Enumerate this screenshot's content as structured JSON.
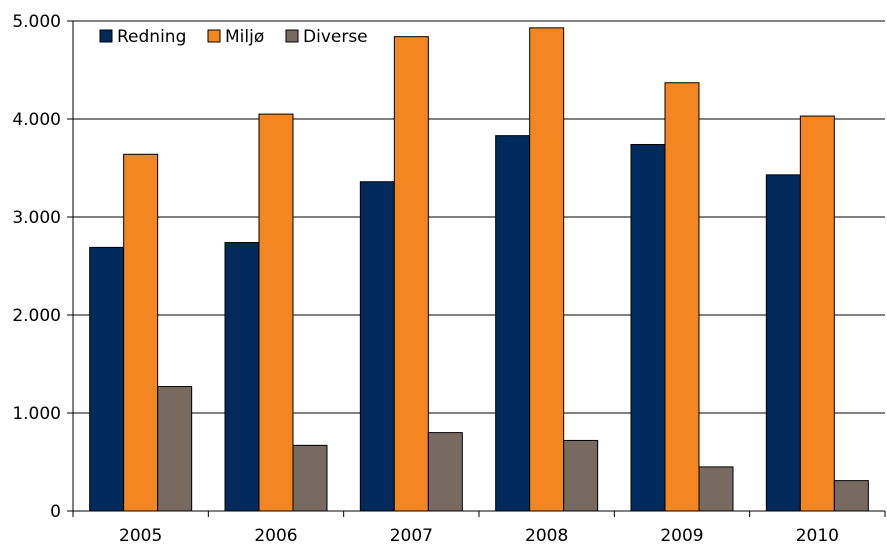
{
  "chart_data": {
    "type": "bar",
    "categories": [
      "2005",
      "2006",
      "2007",
      "2008",
      "2009",
      "2010"
    ],
    "series": [
      {
        "name": "Redning",
        "color": "#002a5c",
        "values": [
          2690,
          2740,
          3360,
          3830,
          3740,
          3430
        ]
      },
      {
        "name": "Miljø",
        "color": "#f48622",
        "values": [
          3640,
          4050,
          4840,
          4930,
          4370,
          4030
        ]
      },
      {
        "name": "Diverse",
        "color": "#776a60",
        "values": [
          1270,
          670,
          800,
          720,
          450,
          310
        ]
      }
    ],
    "ylim": [
      0,
      5000
    ],
    "yticks": [
      {
        "value": 0,
        "label": "0"
      },
      {
        "value": 1000,
        "label": "1.000"
      },
      {
        "value": 2000,
        "label": "2.000"
      },
      {
        "value": 3000,
        "label": "3.000"
      },
      {
        "value": 4000,
        "label": "4.000"
      },
      {
        "value": 5000,
        "label": "5.000"
      }
    ],
    "grid": true,
    "legend": "top-left",
    "title": "",
    "xlabel": "",
    "ylabel": ""
  }
}
